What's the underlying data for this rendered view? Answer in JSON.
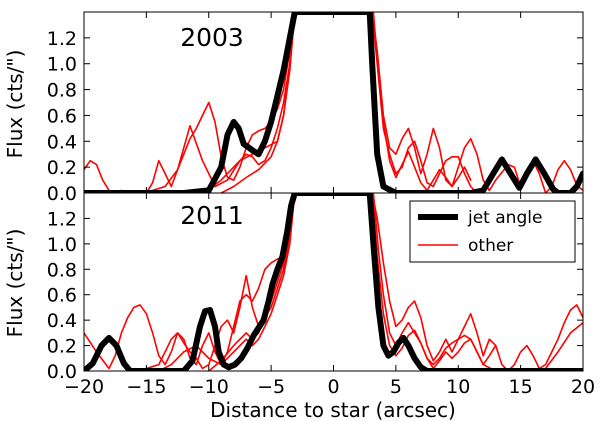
{
  "chart_data": [
    {
      "type": "line",
      "title": "",
      "annotation": "2003",
      "xlabel": "",
      "ylabel": "Flux (cts/\")",
      "xlim": [
        -20,
        20
      ],
      "ylim": [
        0,
        1.4
      ],
      "xticks": [],
      "yticks": [
        "0.0",
        "0.2",
        "0.4",
        "0.6",
        "0.8",
        "1.0",
        "1.2"
      ],
      "series": [
        {
          "name": "jet angle",
          "color": "#000000",
          "x": [
            -20,
            -12,
            -10,
            -9,
            -8.5,
            -8,
            -7.6,
            -7.2,
            -6.9,
            -6.5,
            -6,
            -5.5,
            -5,
            -4.5,
            -4,
            -3.5,
            -3.1,
            -2.9,
            2.9,
            3.1,
            3.5,
            4,
            5,
            8,
            11,
            12,
            12.8,
            13.5,
            14.2,
            14.9,
            15.5,
            16.2,
            16.9,
            17.6,
            18,
            19,
            19.5,
            20
          ],
          "y": [
            0,
            0,
            0.02,
            0.2,
            0.45,
            0.55,
            0.5,
            0.38,
            0.36,
            0.33,
            0.3,
            0.4,
            0.55,
            0.75,
            0.95,
            1.2,
            1.4,
            1.4,
            1.4,
            1.0,
            0.3,
            0.05,
            0,
            0,
            0,
            0.02,
            0.15,
            0.26,
            0.15,
            0.04,
            0.15,
            0.26,
            0.15,
            0.03,
            0,
            0,
            0.05,
            0.15
          ]
        },
        {
          "name": "other 1",
          "color": "#ff0000",
          "x": [
            -20,
            -19.5,
            -19,
            -18.5,
            -18,
            -17.5,
            -17,
            -16.5,
            -16,
            -15,
            -14.5,
            -14,
            -13.5,
            -13,
            -12.5,
            -12,
            -11.5,
            -11,
            -10.5,
            -10,
            -9.5,
            -9,
            -8.5,
            -8,
            -7.5,
            -7,
            -6.5,
            -6,
            -5.5,
            -5,
            -4.5,
            -4,
            -3.5,
            -3.2
          ],
          "y": [
            0.18,
            0.25,
            0.22,
            0.1,
            0.02,
            0,
            0.02,
            0,
            0,
            0,
            0.08,
            0.25,
            0.15,
            0.05,
            0.18,
            0.3,
            0.42,
            0.5,
            0.6,
            0.7,
            0.55,
            0.28,
            0.12,
            0.1,
            0.2,
            0.35,
            0.45,
            0.48,
            0.5,
            0.55,
            0.65,
            0.8,
            1.1,
            1.4
          ]
        },
        {
          "name": "other 2",
          "color": "#ff0000",
          "x": [
            -15.5,
            -14.5,
            -13.5,
            -12.5,
            -11.5,
            -10.5,
            -9.5,
            -8.5,
            -7.5,
            -6.5,
            -5.5,
            -4.5,
            -4,
            -3.5,
            -3.1
          ],
          "y": [
            0,
            0.02,
            0.05,
            0.18,
            0.52,
            0.25,
            0.05,
            0.1,
            0.25,
            0.3,
            0.35,
            0.4,
            0.6,
            1.0,
            1.4
          ]
        },
        {
          "name": "other 3",
          "color": "#ff0000",
          "x": [
            -11,
            -10,
            -9,
            -8,
            -7,
            -6.5,
            -6,
            -5.5,
            -5,
            -4.5,
            -4,
            -3.5,
            -3.2
          ],
          "y": [
            0,
            0.03,
            0.1,
            0.2,
            0.3,
            0.28,
            0.22,
            0.25,
            0.35,
            0.5,
            0.7,
            1.0,
            1.4
          ]
        },
        {
          "name": "other 4",
          "color": "#ff0000",
          "x": [
            -9,
            -8,
            -7,
            -6,
            -5,
            -4.5,
            -4,
            -3.5,
            -3.1
          ],
          "y": [
            0,
            0.05,
            0.12,
            0.18,
            0.28,
            0.4,
            0.6,
            0.95,
            1.4
          ]
        },
        {
          "name": "other 5",
          "color": "#ff0000",
          "x": [
            3.1,
            3.5,
            4,
            4.5,
            5,
            5.5,
            6,
            6.5,
            7,
            7.5,
            8,
            8.5,
            9,
            9.5,
            10,
            10.5,
            11,
            11.5,
            12,
            12.5,
            13,
            14,
            14.5,
            15,
            15.5,
            16,
            16.5,
            17,
            17.5,
            18,
            18.5,
            19,
            19.5,
            20
          ],
          "y": [
            1.4,
            1.1,
            0.6,
            0.35,
            0.3,
            0.42,
            0.5,
            0.35,
            0.15,
            0.3,
            0.5,
            0.35,
            0.1,
            0.05,
            0.2,
            0.35,
            0.42,
            0.3,
            0.1,
            0.02,
            0.1,
            0.22,
            0.2,
            0.05,
            0.15,
            0.25,
            0.15,
            0,
            0.05,
            0.18,
            0.25,
            0.18,
            0.06,
            0.02
          ]
        },
        {
          "name": "other 6",
          "color": "#ff0000",
          "x": [
            3.2,
            3.6,
            4,
            4.5,
            5,
            5.5,
            6,
            6.5,
            7,
            7.5,
            8,
            8.5,
            9,
            9.5,
            10,
            10.5,
            11,
            11.5,
            12
          ],
          "y": [
            1.4,
            0.9,
            0.5,
            0.3,
            0.15,
            0.2,
            0.35,
            0.4,
            0.25,
            0.08,
            0.05,
            0.15,
            0.25,
            0.28,
            0.28,
            0.15,
            0.05,
            0,
            0
          ]
        },
        {
          "name": "other 7",
          "color": "#ff0000",
          "x": [
            3.1,
            3.5,
            4,
            4.5,
            5,
            5.5,
            6,
            6.5,
            7,
            7.5,
            8,
            8.5,
            9,
            9.5,
            10,
            10.5,
            11
          ],
          "y": [
            1.4,
            1.0,
            0.55,
            0.25,
            0.12,
            0.22,
            0.32,
            0.2,
            0.08,
            0.02,
            0.1,
            0.18,
            0.12,
            0.05,
            0.12,
            0.2,
            0.1
          ]
        }
      ]
    },
    {
      "type": "line",
      "title": "",
      "annotation": "2011",
      "xlabel": "Distance to star (arcsec)",
      "ylabel": "Flux (cts/\")",
      "xlim": [
        -20,
        20
      ],
      "ylim": [
        0,
        1.4
      ],
      "xticks": [
        "−20",
        "−15",
        "−10",
        "−5",
        "0",
        "5",
        "10",
        "15",
        "20"
      ],
      "yticks": [
        "0.0",
        "0.2",
        "0.4",
        "0.6",
        "0.8",
        "1.0",
        "1.2"
      ],
      "legend": {
        "location": "top-right",
        "entries": [
          "jet angle",
          "other"
        ]
      },
      "series": [
        {
          "name": "jet angle",
          "color": "#000000",
          "x": [
            -20,
            -19.3,
            -18.6,
            -18,
            -17.4,
            -16.8,
            -16.3,
            -12,
            -11.3,
            -10.7,
            -10.3,
            -9.9,
            -9.5,
            -9.2,
            -8.8,
            -8.4,
            -7.9,
            -7.4,
            -6.9,
            -6.4,
            -6,
            -5.6,
            -5.2,
            -4.9,
            -4.5,
            -4.1,
            -3.7,
            -3.4,
            -3.1,
            2.9,
            3.2,
            3.6,
            4,
            4.4,
            4.8,
            5.2,
            5.6,
            6,
            6.5,
            7,
            7.5,
            8,
            20
          ],
          "y": [
            0,
            0.06,
            0.2,
            0.26,
            0.2,
            0.06,
            0,
            0,
            0.08,
            0.35,
            0.47,
            0.48,
            0.35,
            0.15,
            0.05,
            0.03,
            0.05,
            0.1,
            0.18,
            0.28,
            0.34,
            0.4,
            0.55,
            0.68,
            0.8,
            0.9,
            1.1,
            1.3,
            1.4,
            1.4,
            1.0,
            0.5,
            0.2,
            0.12,
            0.15,
            0.22,
            0.26,
            0.2,
            0.1,
            0.03,
            0,
            0,
            0
          ]
        },
        {
          "name": "other 1",
          "color": "#ff0000",
          "x": [
            -20,
            -19,
            -18,
            -17.5,
            -17,
            -16.5,
            -16,
            -15.5,
            -15,
            -14.5,
            -14,
            -13.5,
            -13,
            -12.5,
            -12,
            -11.5,
            -11,
            -10.5,
            -10,
            -9.5,
            -9,
            -8.5,
            -8,
            -7.5,
            -7,
            -6.5,
            -6,
            -5.5,
            -5,
            -4.5,
            -4,
            -3.5,
            -3.2
          ],
          "y": [
            0.3,
            0.15,
            0.02,
            0.12,
            0.3,
            0.42,
            0.5,
            0.52,
            0.45,
            0.3,
            0.12,
            0.05,
            0.15,
            0.3,
            0.25,
            0.1,
            0.05,
            0.2,
            0.3,
            0.15,
            0.05,
            0.15,
            0.35,
            0.55,
            0.6,
            0.55,
            0.65,
            0.8,
            0.85,
            0.88,
            0.9,
            1.1,
            1.4
          ]
        },
        {
          "name": "other 2",
          "color": "#ff0000",
          "x": [
            -16,
            -15,
            -14,
            -13.5,
            -13,
            -12.5,
            -12,
            -11.5,
            -11,
            -10.5,
            -10,
            -9.5,
            -9,
            -8.5,
            -8,
            -7.5,
            -7,
            -6.5,
            -6,
            -5.5,
            -5,
            -4.5,
            -4,
            -3.5,
            -3.1
          ],
          "y": [
            0,
            0.02,
            0.05,
            0.15,
            0.25,
            0.3,
            0.22,
            0.15,
            0.1,
            0.02,
            0.05,
            0.2,
            0.35,
            0.4,
            0.3,
            0.5,
            0.75,
            0.5,
            0.35,
            0.42,
            0.5,
            0.65,
            0.8,
            1.05,
            1.4
          ]
        },
        {
          "name": "other 3",
          "color": "#ff0000",
          "x": [
            -14,
            -13,
            -12,
            -11,
            -10,
            -9,
            -8,
            -7,
            -6.5,
            -6,
            -5.5,
            -5,
            -4.5,
            -4,
            -3.5,
            -3.1
          ],
          "y": [
            0,
            0.05,
            0.15,
            0.2,
            0.1,
            0.05,
            0.15,
            0.25,
            0.2,
            0.25,
            0.35,
            0.45,
            0.6,
            0.75,
            1.0,
            1.4
          ]
        },
        {
          "name": "other 4",
          "color": "#ff0000",
          "x": [
            -10,
            -9,
            -8,
            -7,
            -6.5,
            -6,
            -5.5,
            -5,
            -4.5,
            -4,
            -3.5,
            -3.2
          ],
          "y": [
            0,
            0.08,
            0.2,
            0.3,
            0.25,
            0.3,
            0.42,
            0.55,
            0.7,
            0.85,
            1.05,
            1.4
          ]
        },
        {
          "name": "other 5",
          "color": "#ff0000",
          "x": [
            3.1,
            3.5,
            4,
            4.5,
            5,
            5.5,
            6,
            6.5,
            7,
            7.5,
            8,
            8.5,
            9,
            9.5,
            10,
            10.5,
            11,
            11.5,
            12,
            12.5,
            13,
            13.5,
            14,
            14.5,
            15,
            15.5,
            16,
            16.5,
            17,
            17.5,
            18,
            18.5,
            19,
            19.5,
            20
          ],
          "y": [
            1.4,
            1.2,
            0.85,
            0.55,
            0.35,
            0.4,
            0.5,
            0.55,
            0.42,
            0.2,
            0.08,
            0.15,
            0.25,
            0.15,
            0.25,
            0.35,
            0.45,
            0.3,
            0.12,
            0.25,
            0.2,
            0.05,
            0,
            0.05,
            0.15,
            0.2,
            0.12,
            0.02,
            0.05,
            0.15,
            0.25,
            0.38,
            0.48,
            0.52,
            0.42
          ]
        },
        {
          "name": "other 6",
          "color": "#ff0000",
          "x": [
            3.2,
            3.6,
            4,
            4.5,
            5,
            5.5,
            6,
            6.5,
            7,
            7.5,
            8,
            8.5,
            9,
            9.5,
            10,
            10.5,
            11,
            11.5,
            12,
            13,
            14,
            15,
            16,
            17,
            18,
            19,
            20
          ],
          "y": [
            1.4,
            0.95,
            0.6,
            0.3,
            0.2,
            0.3,
            0.38,
            0.3,
            0.22,
            0.1,
            0.02,
            0.08,
            0.15,
            0.1,
            0.15,
            0.22,
            0.25,
            0.15,
            0.05,
            0,
            0,
            0,
            0,
            0.02,
            0.15,
            0.3,
            0.38
          ]
        },
        {
          "name": "other 7",
          "color": "#ff0000",
          "x": [
            3.1,
            3.5,
            4,
            4.5,
            5,
            5.5,
            6,
            6.5,
            7,
            7.5,
            8,
            8.5,
            9,
            9.5,
            10,
            10.5,
            11,
            11.5,
            12,
            12.5,
            13
          ],
          "y": [
            1.4,
            0.9,
            0.45,
            0.2,
            0.12,
            0.18,
            0.28,
            0.32,
            0.22,
            0.1,
            0.05,
            0.1,
            0.18,
            0.22,
            0.25,
            0.28,
            0.25,
            0.15,
            0.05,
            0.12,
            0.2
          ]
        }
      ]
    }
  ]
}
